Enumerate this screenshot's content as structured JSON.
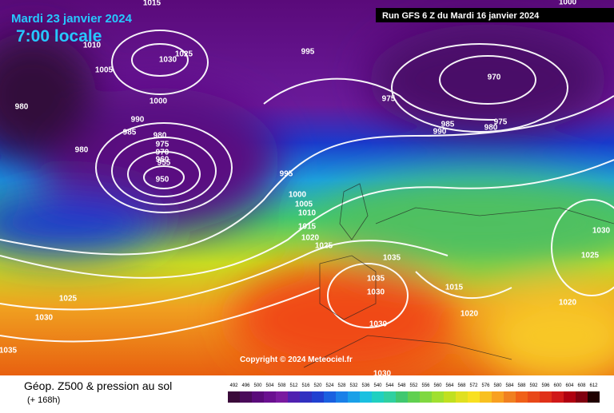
{
  "header": {
    "date": "Mardi 23 janvier 2024",
    "time": "7:00 locale",
    "run": "Run GFS 6 Z du Mardi 16 janvier 2024"
  },
  "copyright": "Copyright © 2024 Meteociel.fr",
  "footer": {
    "title": "Géop. Z500 & pression au sol",
    "subtitle": "(+ 168h)"
  },
  "legend": {
    "labels": [
      492,
      496,
      500,
      504,
      508,
      512,
      516,
      520,
      524,
      528,
      532,
      536,
      540,
      544,
      548,
      552,
      556,
      560,
      564,
      568,
      572,
      576,
      580,
      584,
      588,
      592,
      596,
      600,
      604,
      608,
      612
    ]
  },
  "isobars": [
    1015,
    1030,
    1025,
    995,
    1000,
    1005,
    1010,
    980,
    990,
    985,
    980,
    975,
    970,
    960,
    955,
    950,
    980,
    995,
    1000,
    1005,
    1010,
    1015,
    1020,
    1025,
    1035,
    1035,
    1030,
    1030,
    1030,
    1025,
    1030,
    1035,
    975,
    985,
    980,
    975,
    990,
    970,
    1000,
    1015,
    1020,
    1020,
    1030,
    1025
  ]
}
